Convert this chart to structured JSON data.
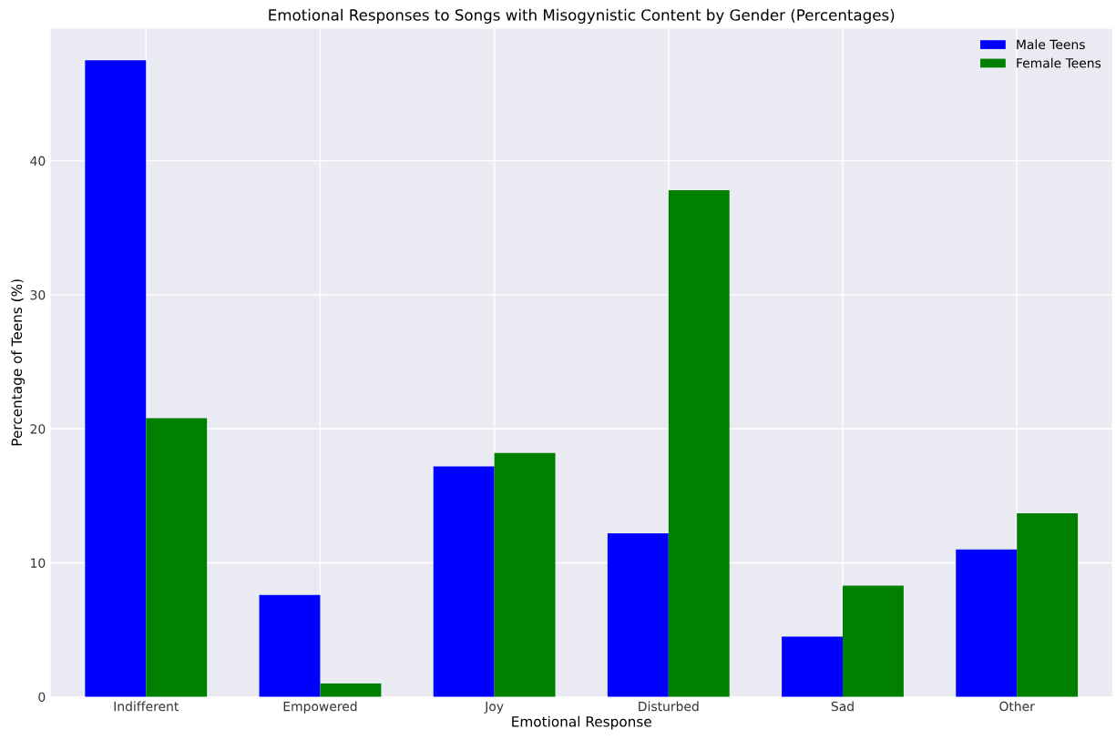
{
  "chart_data": {
    "type": "bar",
    "title": "Emotional Responses to Songs with Misogynistic Content by Gender (Percentages)",
    "xlabel": "Emotional Response",
    "ylabel": "Percentage of Teens (%)",
    "categories": [
      "Indifferent",
      "Empowered",
      "Joy",
      "Disturbed",
      "Sad",
      "Other"
    ],
    "series": [
      {
        "name": "Male Teens",
        "color": "#0000ff",
        "values": [
          47.5,
          7.6,
          17.2,
          12.2,
          4.5,
          11.0
        ]
      },
      {
        "name": "Female Teens",
        "color": "#008000",
        "values": [
          20.8,
          1.0,
          18.2,
          37.8,
          8.3,
          13.7
        ]
      }
    ],
    "ylim": [
      0,
      49.9
    ],
    "yticks": [
      0,
      10,
      20,
      30,
      40
    ],
    "grid": true,
    "legend": "top right"
  }
}
